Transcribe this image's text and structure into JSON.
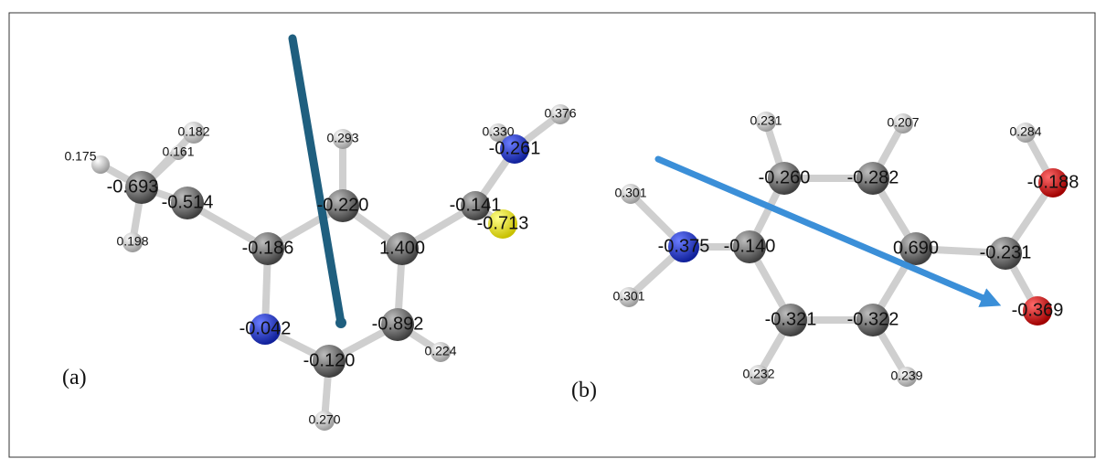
{
  "panels": [
    {
      "label": "(a)",
      "charges": [
        "0.175",
        "0.182",
        "0.161",
        "-0.693",
        "0.198",
        "-0.514",
        "-0.186",
        "-0.220",
        "0.293",
        "1.400",
        "-0.141",
        "-0.713",
        "0.330",
        "-0.261",
        "0.376",
        "-0.042",
        "-0.120",
        "0.270",
        "-0.892",
        "0.224"
      ]
    },
    {
      "label": "(b)",
      "charges": [
        "0.231",
        "0.207",
        "0.284",
        "-0.260",
        "-0.282",
        "-0.188",
        "0.301",
        "-0.375",
        "-0.140",
        "0.690",
        "-0.231",
        "0.301",
        "-0.369",
        "-0.321",
        "-0.322",
        "0.232",
        "0.239"
      ]
    }
  ]
}
